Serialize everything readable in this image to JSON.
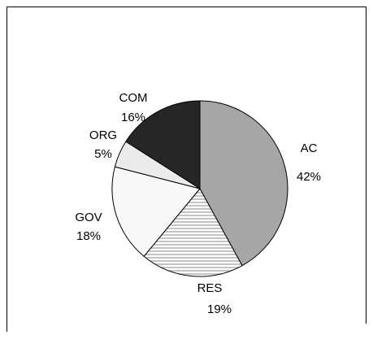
{
  "chart_data": {
    "type": "pie",
    "categories": [
      "AC",
      "RES",
      "GOV",
      "ORG",
      "COM"
    ],
    "values": [
      42,
      19,
      18,
      5,
      16
    ],
    "value_labels": [
      "42%",
      "19%",
      "18%",
      "5%",
      "16%"
    ],
    "colors": [
      "#a6a6a6",
      "#cfcfcf",
      "#f8f8f8",
      "#ebebeb",
      "#262626"
    ],
    "hatch": [
      false,
      true,
      false,
      false,
      false
    ]
  }
}
